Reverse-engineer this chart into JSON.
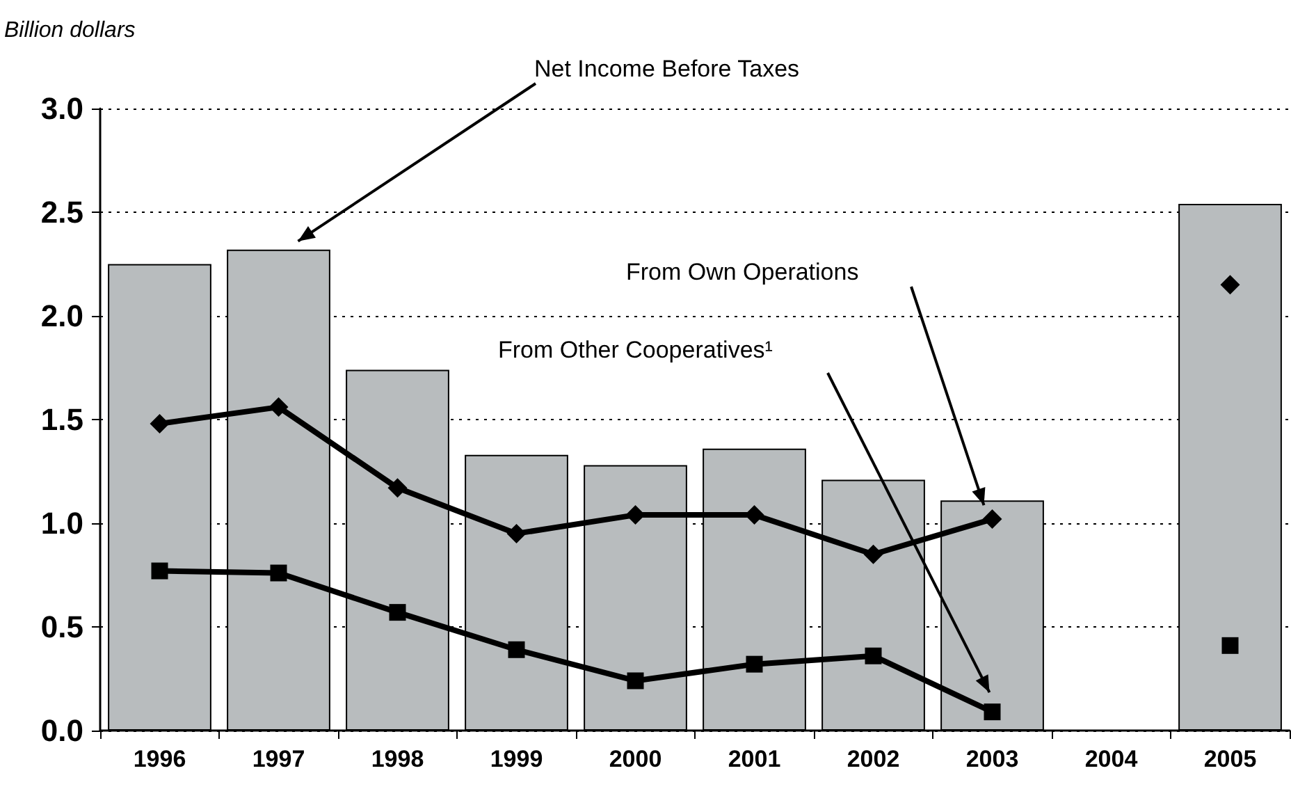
{
  "chart_data": {
    "type": "bar",
    "ylabel": "Billion dollars",
    "categories": [
      "1996",
      "1997",
      "1998",
      "1999",
      "2000",
      "2001",
      "2002",
      "2003",
      "2004",
      "2005"
    ],
    "series": [
      {
        "color": "#b8bcbe",
        "values": [
          2.25,
          2.32,
          1.74,
          1.33,
          1.28,
          1.36,
          1.21,
          1.11,
          null,
          2.54
        ]
      },
      {
        "type": "line",
        "color": "#000000",
        "marker": "diamond",
        "values": [
          1.48,
          1.56,
          1.17,
          0.95,
          1.04,
          1.04,
          0.85,
          1.02,
          null,
          2.15
        ]
      },
      {
        "type": "line",
        "color": "#000000",
        "marker": "square",
        "values": [
          0.77,
          0.76,
          0.57,
          0.39,
          0.24,
          0.32,
          0.36,
          0.09,
          null,
          0.41
        ]
      }
    ],
    "ylim": [
      0,
      3
    ],
    "yticks": [
      {
        "value": 0,
        "label": "0.0"
      },
      0.5,
      {
        "value": 1,
        "label": "1.0"
      },
      1.5,
      {
        "value": 2,
        "label": "2.0"
      },
      2.5,
      {
        "value": 3,
        "label": "3.0"
      }
    ],
    "grid": "y",
    "annotations": [
      "Net Income Before Taxes",
      "From Own Operations",
      "From Other Cooperatives¹"
    ]
  }
}
